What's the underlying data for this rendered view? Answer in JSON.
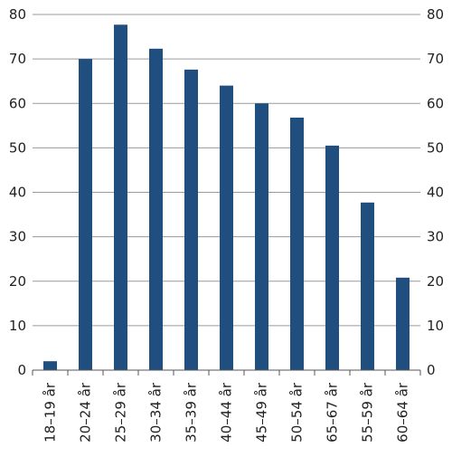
{
  "chart_data": {
    "type": "bar",
    "categories": [
      "18–19 år",
      "20–24 år",
      "25–29 år",
      "30–34 år",
      "35–39 år",
      "40–44 år",
      "45–49 år",
      "50–54 år",
      "65–67 år",
      "55–59 år",
      "60–64 år"
    ],
    "values": [
      2,
      70,
      77.7,
      72.3,
      67.6,
      64,
      60,
      56.8,
      50.5,
      37.7,
      20.8
    ],
    "ylim": [
      0,
      80
    ],
    "yticks": [
      0,
      10,
      20,
      30,
      40,
      50,
      60,
      70,
      80
    ],
    "grid": true,
    "y_axis_both_sides": true,
    "bar_color": "#1f4e7f",
    "legend": "none"
  }
}
